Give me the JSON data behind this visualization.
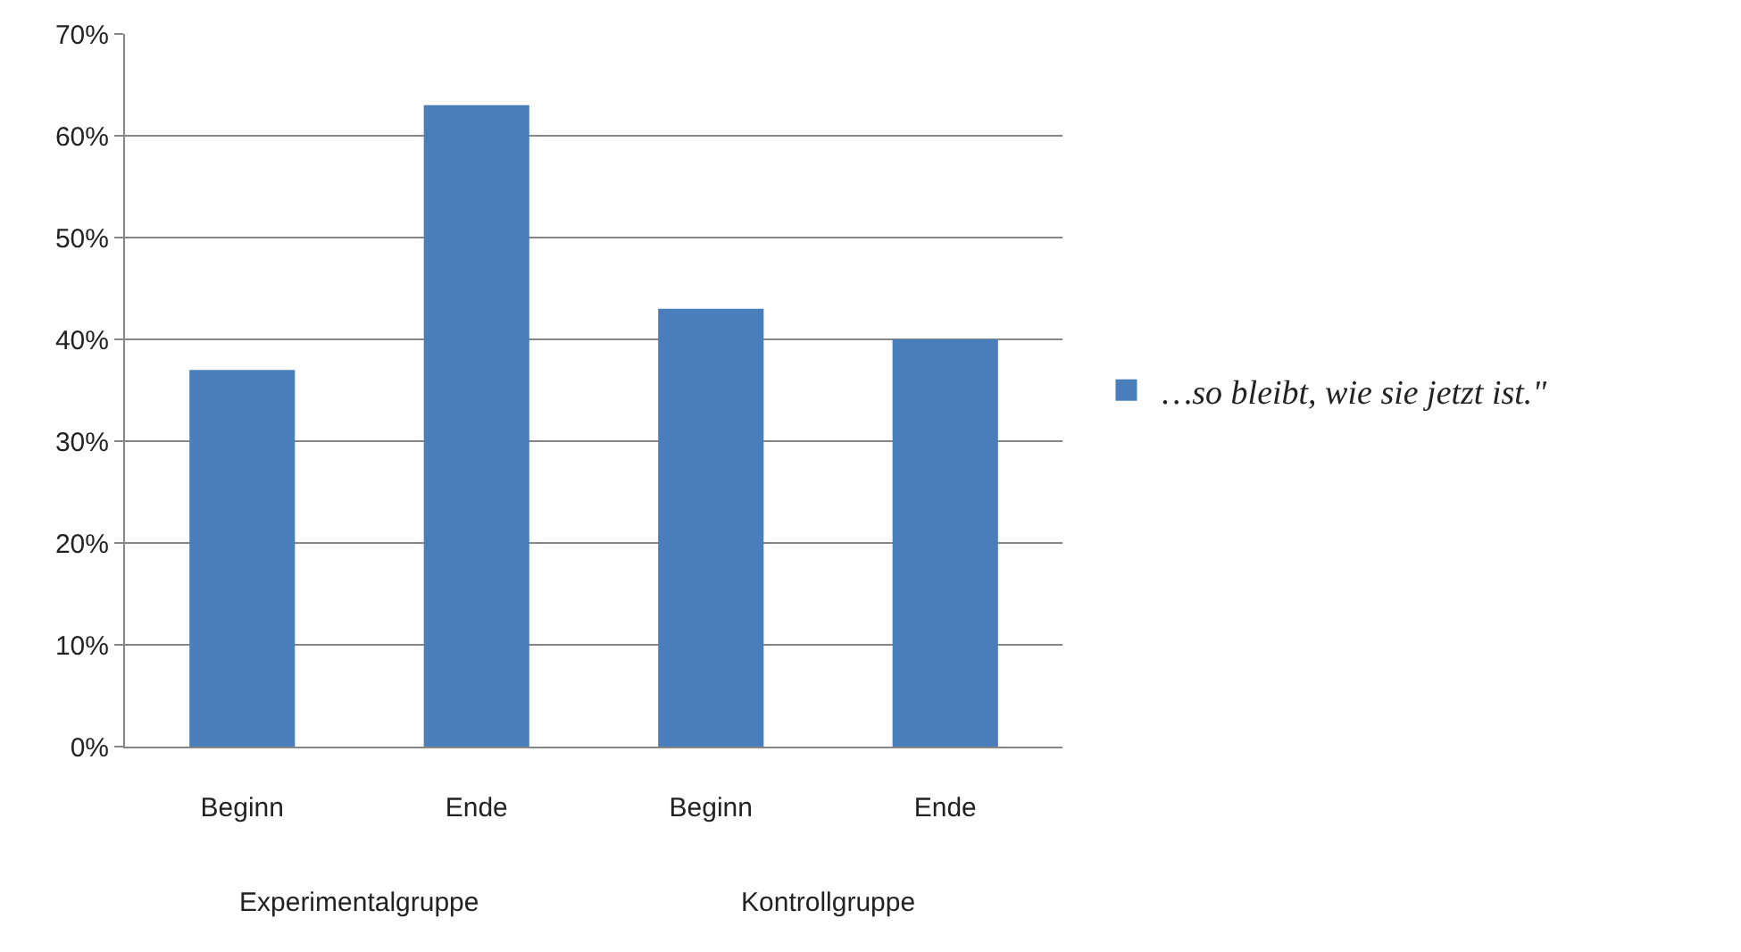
{
  "chart_data": {
    "type": "bar",
    "categories": [
      "Beginn",
      "Ende",
      "Beginn",
      "Ende"
    ],
    "series": [
      {
        "name": "…so bleibt, wie sie jetzt ist.\"",
        "color": "#4a7ebb",
        "values": [
          37,
          63,
          43,
          40
        ]
      }
    ],
    "ylim": [
      0,
      70
    ],
    "yticks": [
      {
        "value": 0,
        "label": "0%"
      },
      {
        "value": 10,
        "label": "10%"
      },
      {
        "value": 20,
        "label": "20%"
      },
      {
        "value": 30,
        "label": "30%"
      },
      {
        "value": 40,
        "label": "40%"
      },
      {
        "value": 50,
        "label": "50%"
      },
      {
        "value": 60,
        "label": "60%"
      },
      {
        "value": 70,
        "label": "70%"
      }
    ],
    "annotations": [
      "Experimentalgruppe",
      "Kontrollgruppe"
    ],
    "grid": "y",
    "legend": "right"
  }
}
